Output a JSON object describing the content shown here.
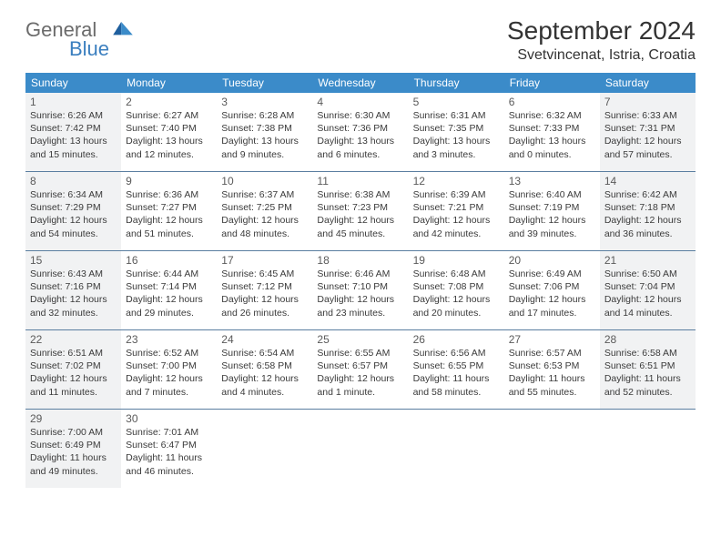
{
  "logo": {
    "text1": "General",
    "text2": "Blue"
  },
  "title": "September 2024",
  "location": "Svetvincenat, Istria, Croatia",
  "colors": {
    "header_bg": "#3b8bc9",
    "header_fg": "#ffffff",
    "divider": "#5a7ea0",
    "shaded": "#f1f2f3",
    "logo_gray": "#6b6b6b",
    "logo_blue": "#3b7fbf"
  },
  "weekdays": [
    "Sunday",
    "Monday",
    "Tuesday",
    "Wednesday",
    "Thursday",
    "Friday",
    "Saturday"
  ],
  "weeks": [
    [
      {
        "n": "1",
        "shaded": true,
        "sunrise": "Sunrise: 6:26 AM",
        "sunset": "Sunset: 7:42 PM",
        "day1": "Daylight: 13 hours",
        "day2": "and 15 minutes."
      },
      {
        "n": "2",
        "shaded": false,
        "sunrise": "Sunrise: 6:27 AM",
        "sunset": "Sunset: 7:40 PM",
        "day1": "Daylight: 13 hours",
        "day2": "and 12 minutes."
      },
      {
        "n": "3",
        "shaded": false,
        "sunrise": "Sunrise: 6:28 AM",
        "sunset": "Sunset: 7:38 PM",
        "day1": "Daylight: 13 hours",
        "day2": "and 9 minutes."
      },
      {
        "n": "4",
        "shaded": false,
        "sunrise": "Sunrise: 6:30 AM",
        "sunset": "Sunset: 7:36 PM",
        "day1": "Daylight: 13 hours",
        "day2": "and 6 minutes."
      },
      {
        "n": "5",
        "shaded": false,
        "sunrise": "Sunrise: 6:31 AM",
        "sunset": "Sunset: 7:35 PM",
        "day1": "Daylight: 13 hours",
        "day2": "and 3 minutes."
      },
      {
        "n": "6",
        "shaded": false,
        "sunrise": "Sunrise: 6:32 AM",
        "sunset": "Sunset: 7:33 PM",
        "day1": "Daylight: 13 hours",
        "day2": "and 0 minutes."
      },
      {
        "n": "7",
        "shaded": true,
        "sunrise": "Sunrise: 6:33 AM",
        "sunset": "Sunset: 7:31 PM",
        "day1": "Daylight: 12 hours",
        "day2": "and 57 minutes."
      }
    ],
    [
      {
        "n": "8",
        "shaded": true,
        "sunrise": "Sunrise: 6:34 AM",
        "sunset": "Sunset: 7:29 PM",
        "day1": "Daylight: 12 hours",
        "day2": "and 54 minutes."
      },
      {
        "n": "9",
        "shaded": false,
        "sunrise": "Sunrise: 6:36 AM",
        "sunset": "Sunset: 7:27 PM",
        "day1": "Daylight: 12 hours",
        "day2": "and 51 minutes."
      },
      {
        "n": "10",
        "shaded": false,
        "sunrise": "Sunrise: 6:37 AM",
        "sunset": "Sunset: 7:25 PM",
        "day1": "Daylight: 12 hours",
        "day2": "and 48 minutes."
      },
      {
        "n": "11",
        "shaded": false,
        "sunrise": "Sunrise: 6:38 AM",
        "sunset": "Sunset: 7:23 PM",
        "day1": "Daylight: 12 hours",
        "day2": "and 45 minutes."
      },
      {
        "n": "12",
        "shaded": false,
        "sunrise": "Sunrise: 6:39 AM",
        "sunset": "Sunset: 7:21 PM",
        "day1": "Daylight: 12 hours",
        "day2": "and 42 minutes."
      },
      {
        "n": "13",
        "shaded": false,
        "sunrise": "Sunrise: 6:40 AM",
        "sunset": "Sunset: 7:19 PM",
        "day1": "Daylight: 12 hours",
        "day2": "and 39 minutes."
      },
      {
        "n": "14",
        "shaded": true,
        "sunrise": "Sunrise: 6:42 AM",
        "sunset": "Sunset: 7:18 PM",
        "day1": "Daylight: 12 hours",
        "day2": "and 36 minutes."
      }
    ],
    [
      {
        "n": "15",
        "shaded": true,
        "sunrise": "Sunrise: 6:43 AM",
        "sunset": "Sunset: 7:16 PM",
        "day1": "Daylight: 12 hours",
        "day2": "and 32 minutes."
      },
      {
        "n": "16",
        "shaded": false,
        "sunrise": "Sunrise: 6:44 AM",
        "sunset": "Sunset: 7:14 PM",
        "day1": "Daylight: 12 hours",
        "day2": "and 29 minutes."
      },
      {
        "n": "17",
        "shaded": false,
        "sunrise": "Sunrise: 6:45 AM",
        "sunset": "Sunset: 7:12 PM",
        "day1": "Daylight: 12 hours",
        "day2": "and 26 minutes."
      },
      {
        "n": "18",
        "shaded": false,
        "sunrise": "Sunrise: 6:46 AM",
        "sunset": "Sunset: 7:10 PM",
        "day1": "Daylight: 12 hours",
        "day2": "and 23 minutes."
      },
      {
        "n": "19",
        "shaded": false,
        "sunrise": "Sunrise: 6:48 AM",
        "sunset": "Sunset: 7:08 PM",
        "day1": "Daylight: 12 hours",
        "day2": "and 20 minutes."
      },
      {
        "n": "20",
        "shaded": false,
        "sunrise": "Sunrise: 6:49 AM",
        "sunset": "Sunset: 7:06 PM",
        "day1": "Daylight: 12 hours",
        "day2": "and 17 minutes."
      },
      {
        "n": "21",
        "shaded": true,
        "sunrise": "Sunrise: 6:50 AM",
        "sunset": "Sunset: 7:04 PM",
        "day1": "Daylight: 12 hours",
        "day2": "and 14 minutes."
      }
    ],
    [
      {
        "n": "22",
        "shaded": true,
        "sunrise": "Sunrise: 6:51 AM",
        "sunset": "Sunset: 7:02 PM",
        "day1": "Daylight: 12 hours",
        "day2": "and 11 minutes."
      },
      {
        "n": "23",
        "shaded": false,
        "sunrise": "Sunrise: 6:52 AM",
        "sunset": "Sunset: 7:00 PM",
        "day1": "Daylight: 12 hours",
        "day2": "and 7 minutes."
      },
      {
        "n": "24",
        "shaded": false,
        "sunrise": "Sunrise: 6:54 AM",
        "sunset": "Sunset: 6:58 PM",
        "day1": "Daylight: 12 hours",
        "day2": "and 4 minutes."
      },
      {
        "n": "25",
        "shaded": false,
        "sunrise": "Sunrise: 6:55 AM",
        "sunset": "Sunset: 6:57 PM",
        "day1": "Daylight: 12 hours",
        "day2": "and 1 minute."
      },
      {
        "n": "26",
        "shaded": false,
        "sunrise": "Sunrise: 6:56 AM",
        "sunset": "Sunset: 6:55 PM",
        "day1": "Daylight: 11 hours",
        "day2": "and 58 minutes."
      },
      {
        "n": "27",
        "shaded": false,
        "sunrise": "Sunrise: 6:57 AM",
        "sunset": "Sunset: 6:53 PM",
        "day1": "Daylight: 11 hours",
        "day2": "and 55 minutes."
      },
      {
        "n": "28",
        "shaded": true,
        "sunrise": "Sunrise: 6:58 AM",
        "sunset": "Sunset: 6:51 PM",
        "day1": "Daylight: 11 hours",
        "day2": "and 52 minutes."
      }
    ],
    [
      {
        "n": "29",
        "shaded": true,
        "sunrise": "Sunrise: 7:00 AM",
        "sunset": "Sunset: 6:49 PM",
        "day1": "Daylight: 11 hours",
        "day2": "and 49 minutes."
      },
      {
        "n": "30",
        "shaded": false,
        "sunrise": "Sunrise: 7:01 AM",
        "sunset": "Sunset: 6:47 PM",
        "day1": "Daylight: 11 hours",
        "day2": "and 46 minutes."
      },
      {
        "empty": true
      },
      {
        "empty": true
      },
      {
        "empty": true
      },
      {
        "empty": true
      },
      {
        "empty": true
      }
    ]
  ]
}
